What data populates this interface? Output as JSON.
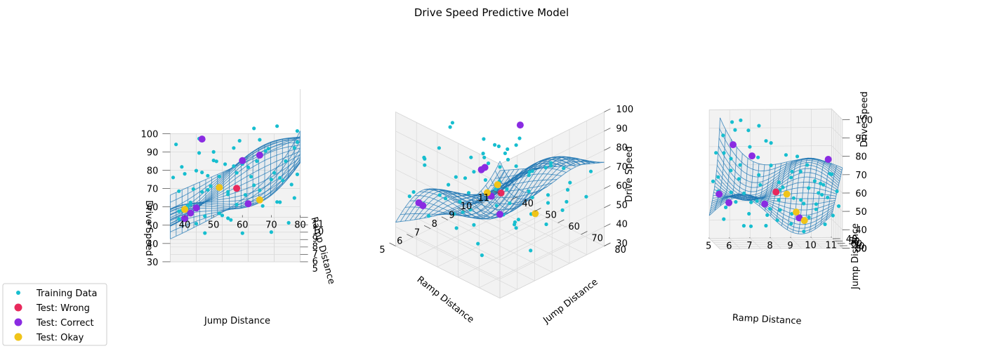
{
  "chart_data": {
    "type": "scatter",
    "title": "Drive Speed Predictive Model",
    "axes": {
      "ramp": {
        "label": "Ramp Distance",
        "range": [
          5,
          11
        ],
        "ticks": [
          5,
          6,
          7,
          8,
          9,
          10,
          11
        ]
      },
      "jump": {
        "label": "Jump Distance",
        "range": [
          35,
          80
        ],
        "ticks": [
          40,
          50,
          60,
          70,
          80
        ]
      },
      "speed": {
        "label": "Drive Speed",
        "range": [
          30,
          100
        ],
        "ticks": [
          30,
          40,
          50,
          60,
          70,
          80,
          90,
          100
        ]
      }
    },
    "views": [
      {
        "name": "view-1",
        "elev": 20,
        "azim": 0
      },
      {
        "name": "view-2",
        "elev": 30,
        "azim": -45
      },
      {
        "name": "view-3",
        "elev": 5,
        "azim": -85
      }
    ],
    "surface": {
      "name": "Predicted surface",
      "color": "#1f77b4"
    },
    "legend": {
      "position": "lower-left",
      "entries": [
        {
          "label": "Training Data",
          "color": "#17becf"
        },
        {
          "label": "Test: Wrong",
          "color": "#e8295c"
        },
        {
          "label": "Test: Correct",
          "color": "#8a2be2"
        },
        {
          "label": "Test: Okay",
          "color": "#f0c419"
        }
      ]
    },
    "training_points": [
      [
        5.1,
        42,
        62
      ],
      [
        5.2,
        46,
        78
      ],
      [
        5.2,
        55,
        66
      ],
      [
        5.3,
        70,
        45
      ],
      [
        5.4,
        62,
        80
      ],
      [
        5.4,
        38,
        56
      ],
      [
        5.5,
        50,
        88
      ],
      [
        5.6,
        74,
        72
      ],
      [
        5.7,
        44,
        48
      ],
      [
        5.8,
        58,
        58
      ],
      [
        5.9,
        66,
        93
      ],
      [
        6.0,
        40,
        74
      ],
      [
        6.1,
        52,
        52
      ],
      [
        6.2,
        78,
        60
      ],
      [
        6.3,
        48,
        64
      ],
      [
        6.4,
        60,
        40
      ],
      [
        6.5,
        36,
        70
      ],
      [
        6.6,
        68,
        84
      ],
      [
        6.7,
        56,
        46
      ],
      [
        6.8,
        45,
        90
      ],
      [
        6.9,
        72,
        55
      ],
      [
        7.0,
        39,
        50
      ],
      [
        7.1,
        63,
        68
      ],
      [
        7.2,
        51,
        76
      ],
      [
        7.3,
        76,
        42
      ],
      [
        7.4,
        43,
        60
      ],
      [
        7.5,
        59,
        86
      ],
      [
        7.6,
        67,
        50
      ],
      [
        7.7,
        47,
        44
      ],
      [
        7.8,
        54,
        72
      ],
      [
        7.9,
        79,
        66
      ],
      [
        8.0,
        37,
        82
      ],
      [
        8.1,
        61,
        54
      ],
      [
        8.2,
        70,
        62
      ],
      [
        8.3,
        49,
        58
      ],
      [
        8.4,
        41,
        46
      ],
      [
        8.5,
        57,
        78
      ],
      [
        8.6,
        73,
        48
      ],
      [
        8.7,
        65,
        70
      ],
      [
        8.8,
        53,
        40
      ],
      [
        8.9,
        44,
        64
      ],
      [
        9.0,
        77,
        56
      ],
      [
        9.1,
        38,
        52
      ],
      [
        9.2,
        62,
        44
      ],
      [
        9.3,
        50,
        68
      ],
      [
        9.4,
        69,
        74
      ],
      [
        9.5,
        46,
        50
      ],
      [
        9.6,
        58,
        60
      ],
      [
        9.7,
        75,
        66
      ],
      [
        9.8,
        42,
        42
      ],
      [
        9.9,
        64,
        52
      ],
      [
        10.0,
        55,
        48
      ],
      [
        10.1,
        71,
        58
      ],
      [
        10.2,
        48,
        56
      ],
      [
        10.3,
        60,
        62
      ],
      [
        10.4,
        39,
        60
      ],
      [
        10.5,
        78,
        70
      ],
      [
        10.6,
        52,
        54
      ],
      [
        10.7,
        66,
        46
      ],
      [
        10.8,
        45,
        66
      ],
      [
        10.9,
        73,
        52
      ],
      [
        11.0,
        57,
        58
      ],
      [
        6.2,
        64,
        98
      ],
      [
        7.0,
        72,
        96
      ],
      [
        5.6,
        79,
        99
      ],
      [
        8.3,
        38,
        40
      ],
      [
        9.4,
        55,
        36
      ],
      [
        10.6,
        41,
        38
      ],
      [
        6.9,
        47,
        38
      ],
      [
        8.8,
        79,
        80
      ]
    ],
    "test_points": [
      {
        "ramp": 8.0,
        "jump": 58,
        "speed": 58,
        "result": "wrong"
      },
      {
        "ramp": 7.4,
        "jump": 62,
        "speed": 52,
        "result": "correct"
      },
      {
        "ramp": 5.8,
        "jump": 66,
        "speed": 85,
        "result": "correct"
      },
      {
        "ramp": 6.8,
        "jump": 60,
        "speed": 78,
        "result": "correct"
      },
      {
        "ramp": 10.7,
        "jump": 46,
        "speed": 74,
        "result": "correct"
      },
      {
        "ramp": 9.3,
        "jump": 44,
        "speed": 42,
        "result": "correct"
      },
      {
        "ramp": 5.4,
        "jump": 42,
        "speed": 55,
        "result": "correct"
      },
      {
        "ramp": 5.9,
        "jump": 40,
        "speed": 50,
        "result": "correct"
      },
      {
        "ramp": 8.6,
        "jump": 52,
        "speed": 56,
        "result": "okay"
      },
      {
        "ramp": 9.6,
        "jump": 40,
        "speed": 40,
        "result": "okay"
      },
      {
        "ramp": 8.9,
        "jump": 66,
        "speed": 48,
        "result": "okay"
      }
    ]
  }
}
